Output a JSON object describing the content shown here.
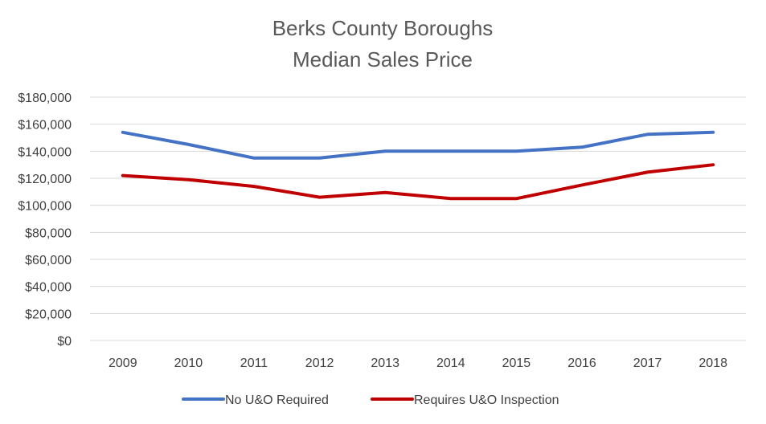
{
  "chart_data": {
    "type": "line",
    "title": [
      "Berks County Boroughs",
      "Median Sales Price"
    ],
    "xlabel": "",
    "ylabel": "",
    "categories": [
      "2009",
      "2010",
      "2011",
      "2012",
      "2013",
      "2014",
      "2015",
      "2016",
      "2017",
      "2018"
    ],
    "ylim": [
      0,
      180000
    ],
    "yticks": [
      0,
      20000,
      40000,
      60000,
      80000,
      100000,
      120000,
      140000,
      160000,
      180000
    ],
    "ytick_labels": [
      "$0",
      "$20,000",
      "$40,000",
      "$60,000",
      "$80,000",
      "$100,000",
      "$120,000",
      "$140,000",
      "$160,000",
      "$180,000"
    ],
    "grid": true,
    "legend_position": "bottom",
    "series": [
      {
        "name": "No U&O Required",
        "color": "#4472c4",
        "values": [
          154000,
          145000,
          135000,
          135000,
          140000,
          140000,
          140000,
          143000,
          152500,
          154000
        ]
      },
      {
        "name": "Requires U&O Inspection",
        "color": "#c00000",
        "values": [
          122000,
          119000,
          114000,
          106000,
          109500,
          105000,
          105000,
          115000,
          124500,
          130000
        ]
      }
    ]
  }
}
